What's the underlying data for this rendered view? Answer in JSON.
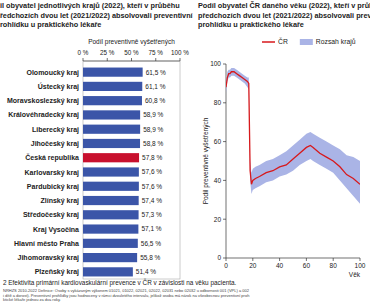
{
  "chart_data": [
    {
      "type": "bar",
      "orientation": "horizontal",
      "title": [
        "il obyvatel jednotlivých krajů (2022), kteří v průběhu",
        "ředchozích dvou let (2021/2022) absolvovali preventivní",
        "rohlídku u praktického lékaře"
      ],
      "xlabel": "Podíl preventivně vyšetřených",
      "categories": [
        "Olomoucký kraj",
        "Ústecký kraj",
        "Moravskoslezský kraj",
        "Královéhradecký kraj",
        "Liberecký kraj",
        "Jihočeský kraj",
        "Česká republika",
        "Karlovarský kraj",
        "Pardubický kraj",
        "Zlínský kraj",
        "Středočeský kraj",
        "Kraj Vysočina",
        "Hlavní město Praha",
        "Jihomoravský kraj",
        "Plzeňský kraj"
      ],
      "values": [
        61.5,
        61.1,
        60.8,
        58.9,
        58.9,
        58.8,
        57.8,
        57.6,
        57.6,
        57.4,
        57.3,
        57.1,
        56.5,
        55.8,
        51.4
      ],
      "value_labels": [
        "61,5 %",
        "61,1 %",
        "60,8 %",
        "58,9 %",
        "58,9 %",
        "58,8 %",
        "57,8 %",
        "57,6 %",
        "57,6 %",
        "57,4 %",
        "57,3 %",
        "57,1 %",
        "56,5 %",
        "55,8 %",
        "51,4 %"
      ],
      "colors": [
        "#3b55a8",
        "#3b55a8",
        "#3b55a8",
        "#3b55a8",
        "#3b55a8",
        "#3b55a8",
        "#c8102e",
        "#3b55a8",
        "#3b55a8",
        "#3b55a8",
        "#3b55a8",
        "#3b55a8",
        "#3b55a8",
        "#3b55a8",
        "#3b55a8"
      ],
      "xlim": [
        0,
        100
      ],
      "xticks": [
        {
          "value": 0,
          "label": "0 %"
        },
        {
          "value": 25,
          "label": "25 %"
        },
        {
          "value": 50,
          "label": "50 %"
        },
        {
          "value": 75,
          "label": "75 %"
        },
        {
          "value": 100,
          "label": "100 %"
        }
      ],
      "data_labels": true,
      "grid": false
    },
    {
      "type": "line",
      "title": [
        "Podíl obyvatel ČR daného věku (2022), kteří v průběhu",
        "předchozích dvou let (2021/2022) absolvovali preventiv",
        "prohlídku u praktického lékaře"
      ],
      "xlabel": "Věk",
      "ylabel": "Podíl preventivně vyšetřených",
      "x": [
        0,
        1,
        2,
        3,
        4,
        6,
        8,
        10,
        12,
        14,
        16,
        17,
        18,
        19,
        20,
        22,
        25,
        30,
        35,
        40,
        45,
        50,
        55,
        60,
        63,
        65,
        70,
        75,
        80,
        85,
        90,
        95,
        100
      ],
      "series": [
        {
          "name": "ČR",
          "type": "line",
          "color": "#d7191c",
          "values": [
            88,
            93,
            95,
            95,
            96,
            96,
            95,
            94,
            93,
            92,
            91,
            90,
            45,
            38,
            40,
            41,
            42,
            44,
            45,
            47,
            48,
            51,
            54,
            57,
            58,
            57,
            54,
            52,
            50,
            47,
            43,
            41,
            38
          ]
        },
        {
          "name": "Rozsah krajů",
          "type": "band",
          "color": "#aab4e6",
          "low": [
            85,
            91,
            93,
            93,
            94,
            94,
            93,
            92,
            91,
            90,
            88,
            87,
            40,
            33,
            35,
            36,
            37,
            39,
            40,
            42,
            43,
            45,
            48,
            50,
            51,
            50,
            48,
            46,
            44,
            40,
            36,
            32,
            28
          ],
          "high": [
            91,
            96,
            97,
            97,
            98,
            98,
            97,
            96,
            95,
            94,
            93,
            93,
            50,
            44,
            46,
            47,
            48,
            50,
            51,
            53,
            55,
            58,
            61,
            64,
            65,
            64,
            62,
            60,
            58,
            56,
            53,
            52,
            50
          ]
        }
      ],
      "xlim": [
        0,
        100
      ],
      "ylim": [
        0,
        100
      ],
      "xticks": [
        0,
        20,
        40,
        60,
        80,
        100
      ],
      "yticks": [
        0,
        20,
        40,
        60,
        80,
        100
      ],
      "legend": "top",
      "grid": false
    }
  ],
  "caption": "2 Efektivita primární kardiovaskulární prevence v ČR v závislosti na věku pacienta.",
  "footnote": [
    "NRHZS 2010-2022 Definice: Osoby s vykázaným výkonem 01021, 01022, 02021, 02022, 02031 nebo 02032 u odbornosti 001 (VPL) a 002",
    "i dítě a dorost). Preventivní prohlídky jsou hodnoceny v rámci dvouletého intervalu, jelikož osoba má nárok na všeobecnou preventivní proh",
    "ktické lékaře jednou za dva roky."
  ]
}
